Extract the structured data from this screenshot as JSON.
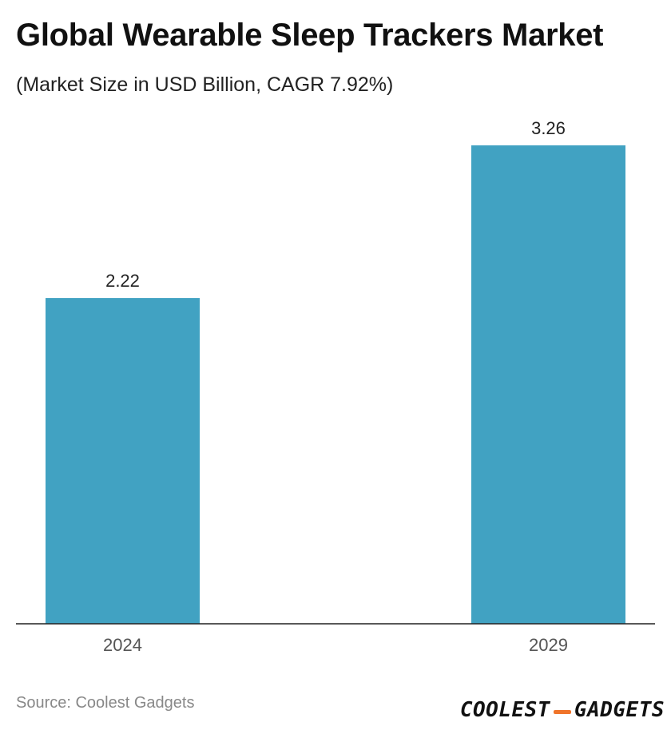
{
  "header": {
    "title": "Global Wearable Sleep Trackers Market",
    "subtitle": "(Market Size in USD Billion, CAGR 7.92%)"
  },
  "chart_data": {
    "type": "bar",
    "categories": [
      "2024",
      "2029"
    ],
    "values": [
      2.22,
      3.26
    ],
    "value_labels": [
      "2.22",
      "3.26"
    ],
    "title": "Global Wearable Sleep Trackers Market",
    "subtitle": "(Market Size in USD Billion, CAGR 7.92%)",
    "xlabel": "",
    "ylabel": "",
    "ylim": [
      0,
      3.26
    ],
    "grid": false,
    "legend": "none",
    "bar_color": "#41a2c2"
  },
  "footer": {
    "source": "Source: Coolest Gadgets",
    "brand_left": "COOLEST",
    "brand_right": "GADGETS",
    "brand_accent_color": "#f0742a"
  }
}
